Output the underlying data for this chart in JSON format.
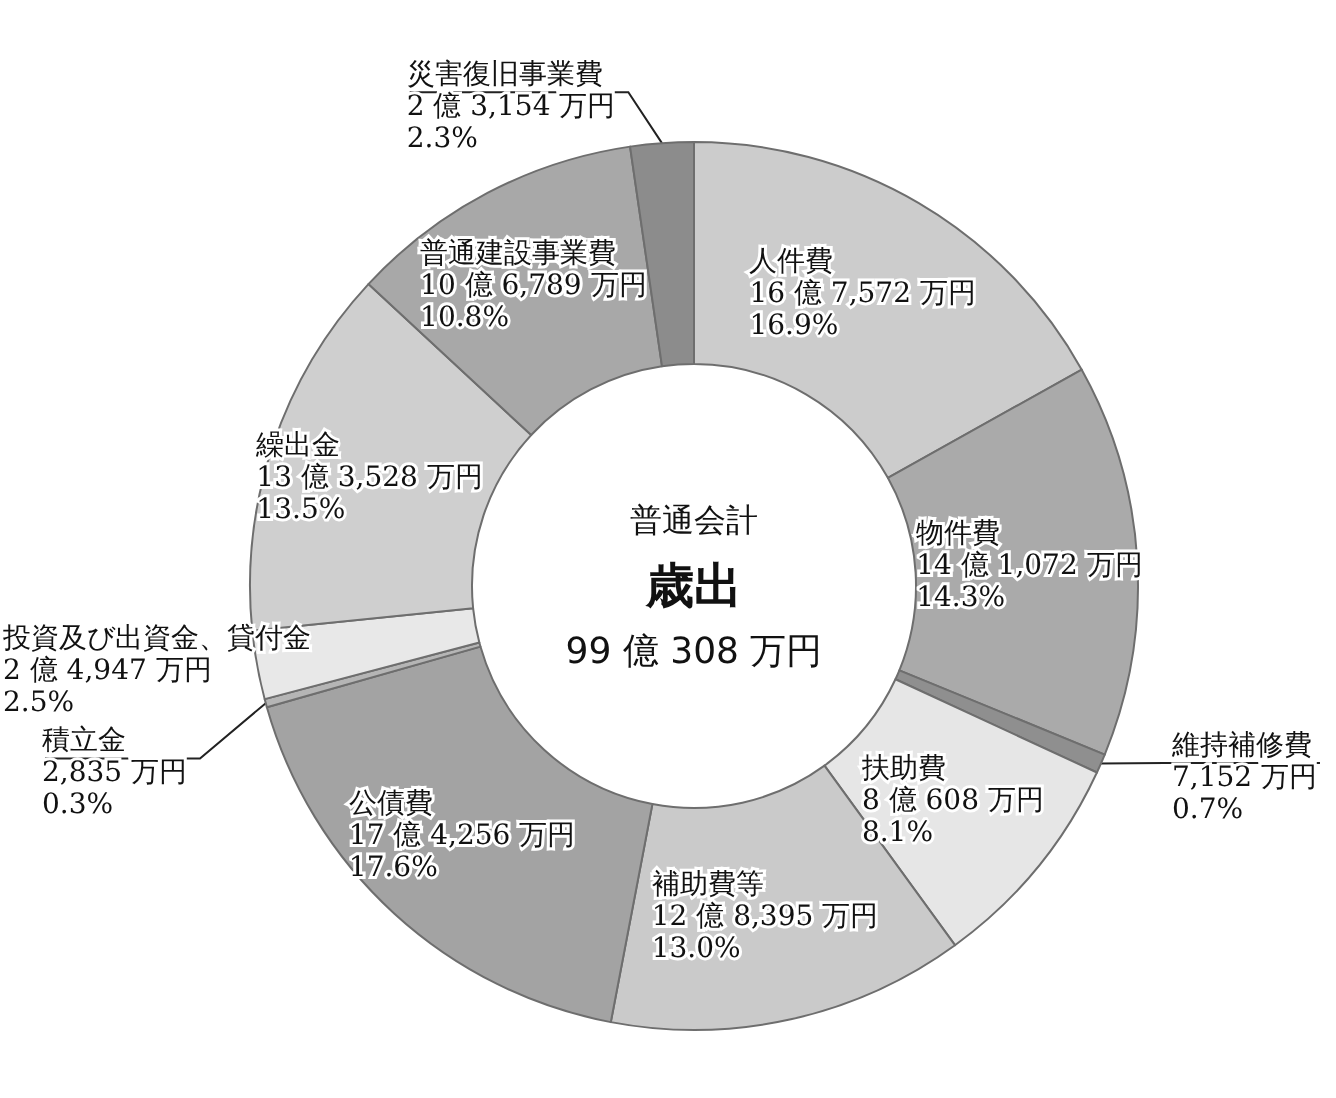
{
  "chart_data": {
    "type": "donut",
    "title": "歳出",
    "subtitle": "普通会計",
    "annotations": [
      "99 億 308 万円"
    ],
    "categories": [
      "人件費",
      "物件費",
      "維持補修費",
      "扶助費",
      "補助費等",
      "公債費",
      "積立金",
      "投資及び出資金、貸付金",
      "繰出金",
      "普通建設事業費",
      "災害復旧事業費"
    ],
    "values": [
      16.9,
      14.3,
      0.7,
      8.1,
      13.0,
      17.6,
      0.3,
      2.5,
      13.5,
      10.8,
      2.3
    ],
    "value_labels": [
      "16 億 7,572 万円\n16.9%",
      "14 億 1,072 万円\n14.3%",
      "7,152 万円\n0.7%",
      "8 億 608 万円\n8.1%",
      "12 億 8,395 万円\n13.0%",
      "17 億 4,256 万円\n17.6%",
      "2,835 万円\n0.3%",
      "2 億 4,947 万円\n2.5%",
      "13 億 3,528 万円\n13.5%",
      "10 億 6,789 万円\n10.8%",
      "2 億 3,154 万円\n2.3%"
    ],
    "colors": [
      "#cccccc",
      "#aaaaaa",
      "#8f8f8f",
      "#e6e6e6",
      "#cacaca",
      "#a3a3a3",
      "#b5b5b5",
      "#e8e8e8",
      "#cfcfcf",
      "#a8a8a8",
      "#8c8c8c"
    ]
  }
}
